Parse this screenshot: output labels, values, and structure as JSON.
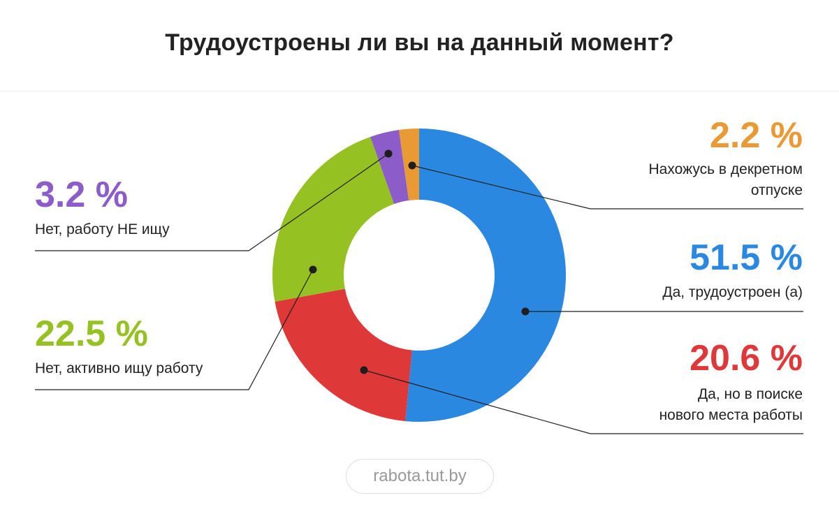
{
  "title": "Трудоустроены ли вы на данный момент?",
  "source": "rabota.tut.by",
  "chart_data": {
    "type": "pie",
    "donut": true,
    "title": "Трудоустроены ли вы на данный момент?",
    "slices": [
      {
        "key": "employed",
        "percent_label": "51.5 %",
        "value": 51.5,
        "label_lines": [
          "Да, трудоустроен (а)"
        ],
        "color": "#2B88E0"
      },
      {
        "key": "employed_searching",
        "percent_label": "20.6 %",
        "value": 20.6,
        "label_lines": [
          "Да, но в поиске",
          "нового места работы"
        ],
        "color": "#DE3838"
      },
      {
        "key": "unemployed_searching",
        "percent_label": "22.5 %",
        "value": 22.5,
        "label_lines": [
          "Нет, активно ищу работу"
        ],
        "color": "#95C122"
      },
      {
        "key": "unemployed_not_searching",
        "percent_label": "3.2 %",
        "value": 3.2,
        "label_lines": [
          "Нет, работу НЕ ищу"
        ],
        "color": "#8C5CC8"
      },
      {
        "key": "maternity_leave",
        "percent_label": "2.2 %",
        "value": 2.2,
        "label_lines": [
          "Нахожусь в декретном",
          "отпуске"
        ],
        "color": "#EA9A35"
      }
    ]
  }
}
